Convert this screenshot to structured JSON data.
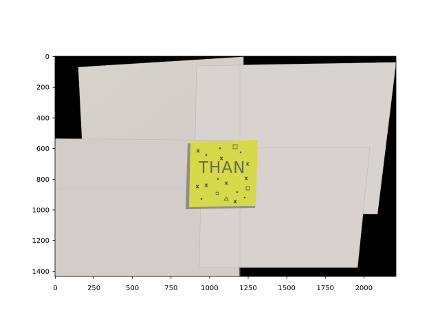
{
  "plot": {
    "type": "image",
    "image_size": [
      2210,
      1440
    ],
    "xlim": [
      0,
      2210
    ],
    "ylim_inverted": [
      1440,
      0
    ],
    "xticks": [
      "0",
      "250",
      "500",
      "750",
      "1000",
      "1250",
      "1500",
      "1750",
      "2000"
    ],
    "yticks": [
      "0",
      "200",
      "400",
      "600",
      "800",
      "1000",
      "1200",
      "1400"
    ],
    "grid": false,
    "colors": {
      "background": "#000000",
      "paper": "#d8d2cd",
      "sticky_note": "#d6d94a"
    }
  },
  "image_content": {
    "sticky_note_text": "THAN",
    "sticky_note_symbols": [
      "x",
      "•",
      "□",
      "x",
      "x",
      "•",
      "x",
      "•",
      "□",
      "o",
      "Δ",
      "x",
      "•"
    ]
  }
}
